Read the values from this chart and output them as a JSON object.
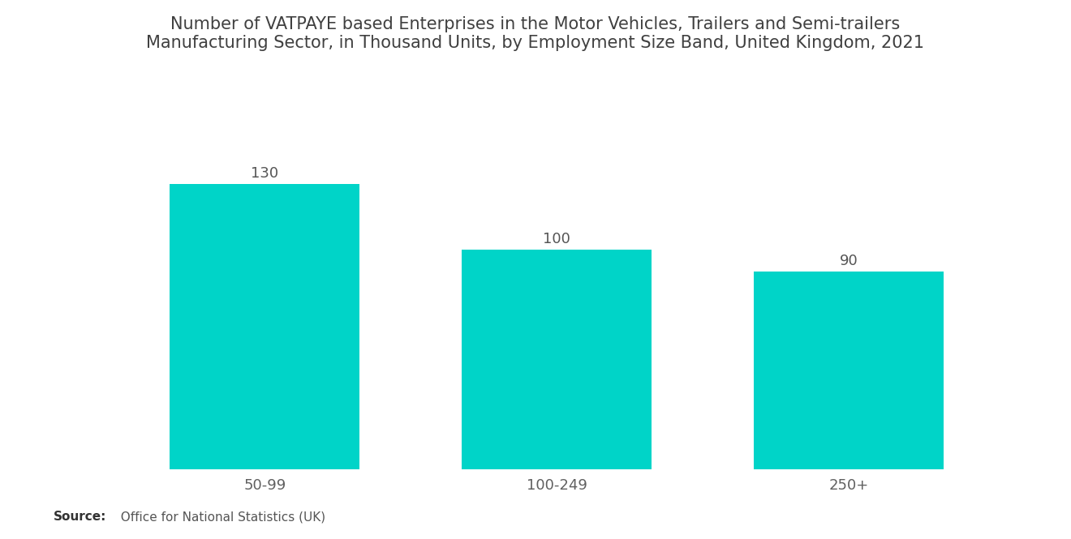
{
  "title_line1": "Number of VATPAYE based Enterprises in the Motor Vehicles, Trailers and Semi-trailers",
  "title_line2": "Manufacturing Sector, in Thousand Units, by Employment Size Band, United Kingdom, 2021",
  "categories": [
    "50-99",
    "100-249",
    "250+"
  ],
  "values": [
    130,
    100,
    90
  ],
  "bar_color": "#00D4C8",
  "background_color": "#FFFFFF",
  "title_color": "#404040",
  "label_color": "#606060",
  "value_color": "#555555",
  "source_bold": "Source:",
  "source_text": "  Office for National Statistics (UK)",
  "ylim": [
    0,
    155
  ],
  "title_fontsize": 15,
  "label_fontsize": 13,
  "value_fontsize": 13,
  "source_fontsize": 11,
  "bar_width": 0.65
}
